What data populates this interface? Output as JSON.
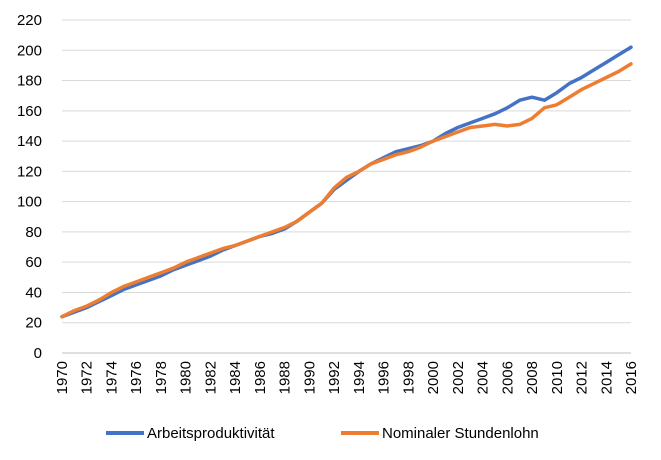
{
  "chart_data": {
    "type": "line",
    "title": "",
    "xlabel": "",
    "ylabel": "",
    "ylim": [
      0,
      220
    ],
    "yticks": [
      0,
      20,
      40,
      60,
      80,
      100,
      120,
      140,
      160,
      180,
      200,
      220
    ],
    "xlim": [
      1970,
      2016
    ],
    "xticks": [
      1970,
      1972,
      1974,
      1976,
      1978,
      1980,
      1982,
      1984,
      1986,
      1988,
      1990,
      1992,
      1994,
      1996,
      1998,
      2000,
      2002,
      2004,
      2006,
      2008,
      2010,
      2012,
      2014,
      2016
    ],
    "grid": true,
    "legend_position": "bottom",
    "x": [
      1970,
      1971,
      1972,
      1973,
      1974,
      1975,
      1976,
      1977,
      1978,
      1979,
      1980,
      1981,
      1982,
      1983,
      1984,
      1985,
      1986,
      1987,
      1988,
      1989,
      1990,
      1991,
      1992,
      1993,
      1994,
      1995,
      1996,
      1997,
      1998,
      1999,
      2000,
      2001,
      2002,
      2003,
      2004,
      2005,
      2006,
      2007,
      2008,
      2009,
      2010,
      2011,
      2012,
      2013,
      2014,
      2015,
      2016
    ],
    "series": [
      {
        "name": "Arbeitsproduktivität",
        "color": "#4472C4",
        "values": [
          24,
          27,
          30,
          34,
          38,
          42,
          45,
          48,
          51,
          55,
          58,
          61,
          64,
          68,
          71,
          74,
          77,
          79,
          82,
          87,
          93,
          99,
          108,
          114,
          120,
          125,
          129,
          133,
          135,
          137,
          140,
          145,
          149,
          152,
          155,
          158,
          162,
          167,
          169,
          167,
          172,
          178,
          182,
          187,
          192,
          197,
          202
        ]
      },
      {
        "name": "Nominaler Stundenlohn",
        "color": "#ED7D31",
        "values": [
          24,
          28,
          31,
          35,
          40,
          44,
          47,
          50,
          53,
          56,
          60,
          63,
          66,
          69,
          71,
          74,
          77,
          80,
          83,
          87,
          93,
          99,
          109,
          116,
          120,
          125,
          128,
          131,
          133,
          136,
          140,
          143,
          146,
          149,
          150,
          151,
          150,
          151,
          155,
          162,
          164,
          169,
          174,
          178,
          182,
          186,
          191
        ]
      }
    ]
  }
}
